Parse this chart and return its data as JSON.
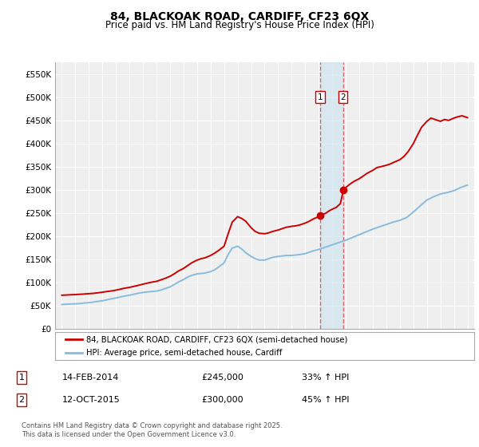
{
  "title": "84, BLACKOAK ROAD, CARDIFF, CF23 6QX",
  "subtitle": "Price paid vs. HM Land Registry's House Price Index (HPI)",
  "red_label": "84, BLACKOAK ROAD, CARDIFF, CF23 6QX (semi-detached house)",
  "blue_label": "HPI: Average price, semi-detached house, Cardiff",
  "footnote": "Contains HM Land Registry data © Crown copyright and database right 2025.\nThis data is licensed under the Open Government Licence v3.0.",
  "sale1_label": "1",
  "sale1_date": "14-FEB-2014",
  "sale1_price": "£245,000",
  "sale1_hpi": "33% ↑ HPI",
  "sale2_label": "2",
  "sale2_date": "12-OCT-2015",
  "sale2_price": "£300,000",
  "sale2_hpi": "45% ↑ HPI",
  "background_color": "#ffffff",
  "plot_bg_color": "#efefef",
  "grid_color": "#ffffff",
  "red_color": "#cc0000",
  "blue_color": "#88bbdd",
  "shade_color": "#d0e4f0",
  "marker_line1_x": 2014.12,
  "marker_line2_x": 2015.79,
  "ylim": [
    0,
    575000
  ],
  "yticks": [
    0,
    50000,
    100000,
    150000,
    200000,
    250000,
    300000,
    350000,
    400000,
    450000,
    500000,
    550000
  ],
  "ytick_labels": [
    "£0",
    "£50K",
    "£100K",
    "£150K",
    "£200K",
    "£250K",
    "£300K",
    "£350K",
    "£400K",
    "£450K",
    "£500K",
    "£550K"
  ],
  "xlim": [
    1994.5,
    2025.5
  ],
  "xticks": [
    1995,
    1996,
    1997,
    1998,
    1999,
    2000,
    2001,
    2002,
    2003,
    2004,
    2005,
    2006,
    2007,
    2008,
    2009,
    2010,
    2011,
    2012,
    2013,
    2014,
    2015,
    2016,
    2017,
    2018,
    2019,
    2020,
    2021,
    2022,
    2023,
    2024,
    2025
  ],
  "dot1_x": 2014.12,
  "dot1_y": 245000,
  "dot2_x": 2015.79,
  "dot2_y": 300000,
  "red_x": [
    1995.0,
    1995.3,
    1995.6,
    1996.0,
    1996.3,
    1996.6,
    1997.0,
    1997.3,
    1997.6,
    1998.0,
    1998.3,
    1998.6,
    1999.0,
    1999.3,
    1999.6,
    2000.0,
    2000.3,
    2000.6,
    2001.0,
    2001.3,
    2001.6,
    2002.0,
    2002.3,
    2002.6,
    2003.0,
    2003.3,
    2003.6,
    2004.0,
    2004.3,
    2004.6,
    2005.0,
    2005.3,
    2005.6,
    2006.0,
    2006.3,
    2006.6,
    2007.0,
    2007.3,
    2007.6,
    2008.0,
    2008.3,
    2008.6,
    2009.0,
    2009.3,
    2009.6,
    2010.0,
    2010.3,
    2010.6,
    2011.0,
    2011.3,
    2011.6,
    2012.0,
    2012.3,
    2012.6,
    2013.0,
    2013.3,
    2013.6,
    2014.0,
    2014.12,
    2014.5,
    2014.8,
    2015.0,
    2015.3,
    2015.6,
    2015.79,
    2016.0,
    2016.3,
    2016.6,
    2017.0,
    2017.3,
    2017.6,
    2018.0,
    2018.3,
    2018.6,
    2019.0,
    2019.3,
    2019.6,
    2020.0,
    2020.3,
    2020.6,
    2021.0,
    2021.3,
    2021.6,
    2022.0,
    2022.3,
    2022.6,
    2023.0,
    2023.3,
    2023.6,
    2024.0,
    2024.3,
    2024.6,
    2025.0
  ],
  "red_y": [
    72000,
    72500,
    73000,
    73500,
    74000,
    74500,
    75500,
    76000,
    77000,
    78500,
    80000,
    81000,
    83000,
    85000,
    87000,
    89000,
    91000,
    93000,
    96000,
    98000,
    100000,
    102000,
    105000,
    108000,
    113000,
    118000,
    124000,
    130000,
    136000,
    142000,
    148000,
    151000,
    153000,
    158000,
    163000,
    169000,
    178000,
    205000,
    230000,
    242000,
    238000,
    232000,
    218000,
    210000,
    206000,
    205000,
    207000,
    210000,
    213000,
    216000,
    219000,
    221000,
    222000,
    224000,
    228000,
    232000,
    237000,
    242000,
    245000,
    249000,
    255000,
    258000,
    262000,
    270000,
    295000,
    305000,
    312000,
    318000,
    324000,
    330000,
    336000,
    342000,
    348000,
    350000,
    353000,
    356000,
    360000,
    365000,
    372000,
    382000,
    400000,
    418000,
    435000,
    448000,
    455000,
    452000,
    448000,
    452000,
    450000,
    455000,
    458000,
    460000,
    456000
  ],
  "blue_x": [
    1995.0,
    1995.3,
    1995.6,
    1996.0,
    1996.3,
    1996.6,
    1997.0,
    1997.3,
    1997.6,
    1998.0,
    1998.3,
    1998.6,
    1999.0,
    1999.3,
    1999.6,
    2000.0,
    2000.3,
    2000.6,
    2001.0,
    2001.3,
    2001.6,
    2002.0,
    2002.3,
    2002.6,
    2003.0,
    2003.3,
    2003.6,
    2004.0,
    2004.3,
    2004.6,
    2005.0,
    2005.3,
    2005.6,
    2006.0,
    2006.3,
    2006.6,
    2007.0,
    2007.3,
    2007.6,
    2008.0,
    2008.3,
    2008.6,
    2009.0,
    2009.3,
    2009.6,
    2010.0,
    2010.3,
    2010.6,
    2011.0,
    2011.3,
    2011.6,
    2012.0,
    2012.3,
    2012.6,
    2013.0,
    2013.3,
    2013.6,
    2014.0,
    2014.5,
    2015.0,
    2015.5,
    2016.0,
    2016.5,
    2017.0,
    2017.5,
    2018.0,
    2018.5,
    2019.0,
    2019.5,
    2020.0,
    2020.5,
    2021.0,
    2021.5,
    2022.0,
    2022.5,
    2023.0,
    2023.5,
    2024.0,
    2024.5,
    2025.0
  ],
  "blue_y": [
    52000,
    52500,
    53000,
    53500,
    54000,
    55000,
    56000,
    57000,
    58500,
    60000,
    62000,
    64000,
    66000,
    68000,
    70000,
    72000,
    74000,
    76000,
    78000,
    79000,
    80000,
    81000,
    83000,
    86000,
    90000,
    95000,
    100000,
    106000,
    111000,
    115000,
    118000,
    119000,
    120000,
    123000,
    127000,
    133000,
    142000,
    160000,
    174000,
    178000,
    172000,
    164000,
    156000,
    151000,
    148000,
    148000,
    151000,
    154000,
    156000,
    157000,
    158000,
    158000,
    159000,
    160000,
    162000,
    165000,
    168000,
    171000,
    176000,
    181000,
    186000,
    191000,
    197000,
    203000,
    209000,
    215000,
    220000,
    225000,
    230000,
    234000,
    240000,
    252000,
    265000,
    278000,
    285000,
    291000,
    294000,
    298000,
    305000,
    310000
  ]
}
